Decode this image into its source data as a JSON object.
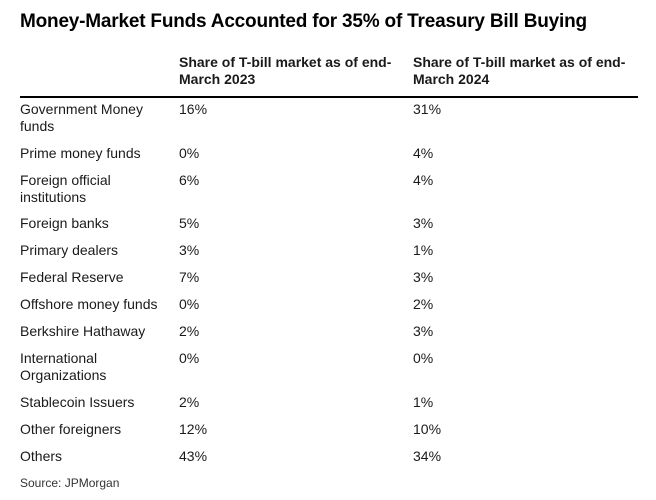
{
  "chart_data": {
    "type": "table",
    "title": "Money-Market Funds Accounted for 35% of Treasury Bill Buying",
    "columns": [
      "",
      "Share of T-bill market as of end-March 2023",
      "Share of T-bill market as of end-March 2024"
    ],
    "header_lines": {
      "c1": [
        "Share of T-bill market as of end-",
        "March 2023"
      ],
      "c2": [
        "Share of T-bill market as of end-",
        "March 2024"
      ]
    },
    "rows": [
      {
        "label_lines": [
          "Government Money",
          "funds"
        ],
        "v2023": "16%",
        "v2024": "31%",
        "value_2023": 16,
        "value_2024": 31
      },
      {
        "label_lines": [
          "Prime money funds"
        ],
        "v2023": "0%",
        "v2024": "4%",
        "value_2023": 0,
        "value_2024": 4
      },
      {
        "label_lines": [
          "Foreign official",
          "institutions"
        ],
        "v2023": "6%",
        "v2024": "4%",
        "value_2023": 6,
        "value_2024": 4
      },
      {
        "label_lines": [
          "Foreign banks"
        ],
        "v2023": "5%",
        "v2024": "3%",
        "value_2023": 5,
        "value_2024": 3
      },
      {
        "label_lines": [
          "Primary dealers"
        ],
        "v2023": "3%",
        "v2024": "1%",
        "value_2023": 3,
        "value_2024": 1
      },
      {
        "label_lines": [
          "Federal Reserve"
        ],
        "v2023": "7%",
        "v2024": "3%",
        "value_2023": 7,
        "value_2024": 3
      },
      {
        "label_lines": [
          "Offshore money funds"
        ],
        "v2023": "0%",
        "v2024": "2%",
        "value_2023": 0,
        "value_2024": 2
      },
      {
        "label_lines": [
          "Berkshire Hathaway"
        ],
        "v2023": "2%",
        "v2024": "3%",
        "value_2023": 2,
        "value_2024": 3
      },
      {
        "label_lines": [
          "International",
          "Organizations"
        ],
        "v2023": "0%",
        "v2024": "0%",
        "value_2023": 0,
        "value_2024": 0
      },
      {
        "label_lines": [
          "Stablecoin Issuers"
        ],
        "v2023": "2%",
        "v2024": "1%",
        "value_2023": 2,
        "value_2024": 1
      },
      {
        "label_lines": [
          "Other foreigners"
        ],
        "v2023": "12%",
        "v2024": "10%",
        "value_2023": 12,
        "value_2024": 10
      },
      {
        "label_lines": [
          "Others"
        ],
        "v2023": "43%",
        "v2024": "34%",
        "value_2023": 43,
        "value_2024": 34
      }
    ],
    "source": "Source: JPMorgan"
  }
}
